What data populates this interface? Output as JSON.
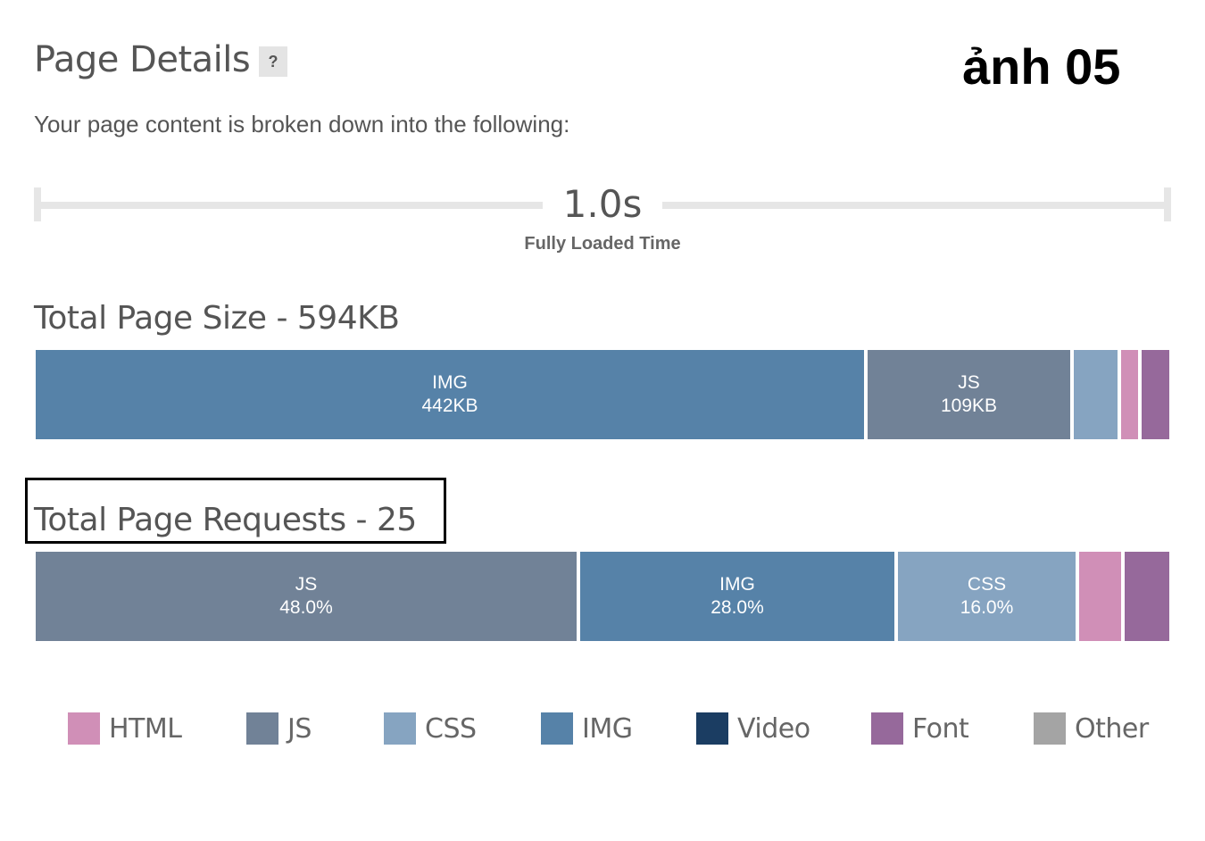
{
  "header": {
    "title": "Page Details",
    "help_label": "?",
    "stamp": "ảnh 05",
    "subtitle": "Your page content is broken down into the following:"
  },
  "timing": {
    "value": "1.0s",
    "label": "Fully Loaded Time"
  },
  "page_size": {
    "title": "Total Page Size - 594KB",
    "segments": [
      {
        "type": "IMG",
        "label": "442KB",
        "share": 0.7335,
        "color": "#5682a8"
      },
      {
        "type": "JS",
        "label": "109KB",
        "share": 0.1815,
        "color": "#718297"
      },
      {
        "type": "CSS",
        "label": "",
        "share": 0.0415,
        "color": "#86a4c1"
      },
      {
        "type": "HTML",
        "label": "",
        "share": 0.0185,
        "color": "#d08fb7"
      },
      {
        "type": "Font",
        "label": "",
        "share": 0.0145,
        "color": "#96699b"
      }
    ]
  },
  "page_requests": {
    "title": "Total Page Requests - 25",
    "segments": [
      {
        "type": "JS",
        "label": "48.0%",
        "share": 0.48,
        "color": "#718297"
      },
      {
        "type": "IMG",
        "label": "28.0%",
        "share": 0.28,
        "color": "#5682a8"
      },
      {
        "type": "CSS",
        "label": "16.0%",
        "share": 0.16,
        "color": "#86a4c1"
      },
      {
        "type": "HTML",
        "label": "",
        "share": 0.04,
        "color": "#d08fb7"
      },
      {
        "type": "Font",
        "label": "",
        "share": 0.04,
        "color": "#96699b"
      }
    ]
  },
  "legend": [
    {
      "label": "HTML",
      "color": "#d08fb7"
    },
    {
      "label": "JS",
      "color": "#718297"
    },
    {
      "label": "CSS",
      "color": "#86a4c1"
    },
    {
      "label": "IMG",
      "color": "#5682a8"
    },
    {
      "label": "Video",
      "color": "#1b3d62"
    },
    {
      "label": "Font",
      "color": "#96699b"
    },
    {
      "label": "Other",
      "color": "#a4a4a4"
    }
  ]
}
